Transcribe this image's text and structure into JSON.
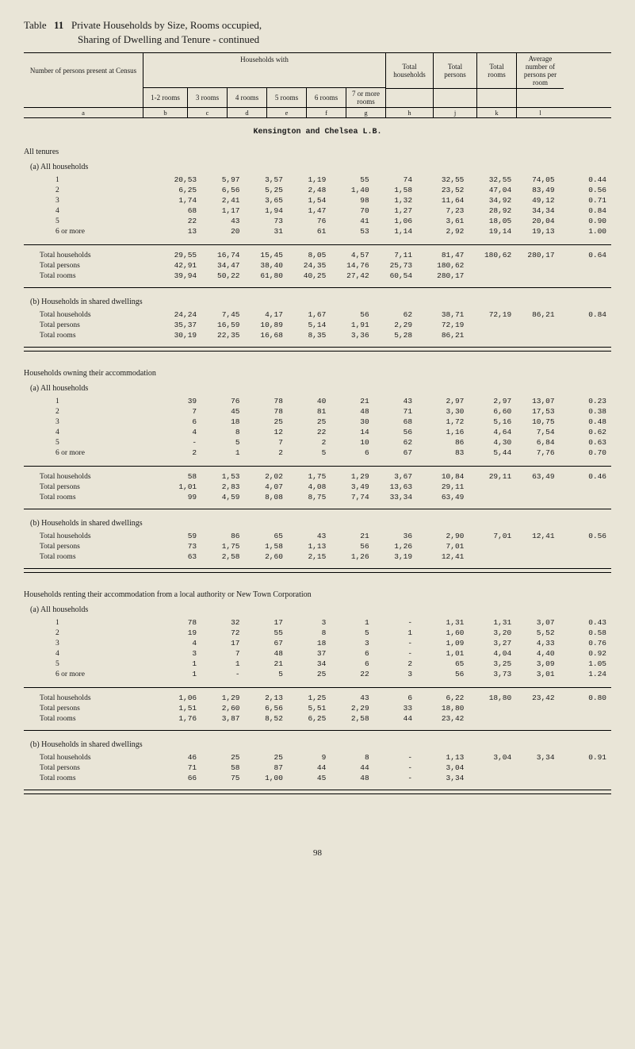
{
  "title_prefix": "Table",
  "title_number": "11",
  "title_text": "Private Households by Size, Rooms occupied,",
  "subtitle_text": "Sharing of Dwelling and Tenure - continued",
  "header": {
    "stub": "Number of persons present at Census",
    "households_with": "Households with",
    "cols_sub": [
      "1-2 rooms",
      "3 rooms",
      "4 rooms",
      "5 rooms",
      "6 rooms",
      "7 or more rooms"
    ],
    "total_households": "Total households",
    "total_persons": "Total persons",
    "total_rooms": "Total rooms",
    "avg": "Average number of persons per room",
    "letters": [
      "a",
      "b",
      "c",
      "d",
      "e",
      "f",
      "g",
      "h",
      "j",
      "k",
      "l"
    ]
  },
  "region": "Kensington and Chelsea L.B.",
  "sections": [
    {
      "heading": "All tenures",
      "subs": [
        {
          "sub_heading": "(a) All households",
          "rows": [
            {
              "label": "1",
              "cells": [
                "20,53",
                "5,97",
                "3,57",
                "1,19",
                "55",
                "74",
                "32,55",
                "32,55",
                "74,05",
                "0.44"
              ]
            },
            {
              "label": "2",
              "cells": [
                "6,25",
                "6,56",
                "5,25",
                "2,48",
                "1,40",
                "1,58",
                "23,52",
                "47,04",
                "83,49",
                "0.56"
              ]
            },
            {
              "label": "3",
              "cells": [
                "1,74",
                "2,41",
                "3,65",
                "1,54",
                "98",
                "1,32",
                "11,64",
                "34,92",
                "49,12",
                "0.71"
              ]
            },
            {
              "label": "4",
              "cells": [
                "68",
                "1,17",
                "1,94",
                "1,47",
                "70",
                "1,27",
                "7,23",
                "28,92",
                "34,34",
                "0.84"
              ]
            },
            {
              "label": "5",
              "cells": [
                "22",
                "43",
                "73",
                "76",
                "41",
                "1,06",
                "3,61",
                "18,05",
                "20,04",
                "0.90"
              ]
            },
            {
              "label": "6 or more",
              "cells": [
                "13",
                "20",
                "31",
                "61",
                "53",
                "1,14",
                "2,92",
                "19,14",
                "19,13",
                "1.00"
              ]
            }
          ],
          "totals": [
            {
              "label": "Total households",
              "cells": [
                "29,55",
                "16,74",
                "15,45",
                "8,05",
                "4,57",
                "7,11",
                "81,47",
                "180,62",
                "280,17",
                "0.64"
              ]
            },
            {
              "label": "Total persons",
              "cells": [
                "42,91",
                "34,47",
                "38,40",
                "24,35",
                "14,76",
                "25,73",
                "180,62",
                "",
                "",
                ""
              ]
            },
            {
              "label": "Total rooms",
              "cells": [
                "39,94",
                "50,22",
                "61,80",
                "40,25",
                "27,42",
                "60,54",
                "280,17",
                "",
                "",
                ""
              ]
            }
          ]
        },
        {
          "sub_heading": "(b) Households in shared dwellings",
          "rows": [],
          "totals": [
            {
              "label": "Total households",
              "cells": [
                "24,24",
                "7,45",
                "4,17",
                "1,67",
                "56",
                "62",
                "38,71",
                "72,19",
                "86,21",
                "0.84"
              ]
            },
            {
              "label": "Total persons",
              "cells": [
                "35,37",
                "16,59",
                "10,89",
                "5,14",
                "1,91",
                "2,29",
                "72,19",
                "",
                "",
                ""
              ]
            },
            {
              "label": "Total rooms",
              "cells": [
                "30,19",
                "22,35",
                "16,68",
                "8,35",
                "3,36",
                "5,28",
                "86,21",
                "",
                "",
                ""
              ]
            }
          ]
        }
      ]
    },
    {
      "heading": "Households owning their accommodation",
      "subs": [
        {
          "sub_heading": "(a) All households",
          "rows": [
            {
              "label": "1",
              "cells": [
                "39",
                "76",
                "78",
                "40",
                "21",
                "43",
                "2,97",
                "2,97",
                "13,07",
                "0.23"
              ]
            },
            {
              "label": "2",
              "cells": [
                "7",
                "45",
                "78",
                "81",
                "48",
                "71",
                "3,30",
                "6,60",
                "17,53",
                "0.38"
              ]
            },
            {
              "label": "3",
              "cells": [
                "6",
                "18",
                "25",
                "25",
                "30",
                "68",
                "1,72",
                "5,16",
                "10,75",
                "0.48"
              ]
            },
            {
              "label": "4",
              "cells": [
                "4",
                "8",
                "12",
                "22",
                "14",
                "56",
                "1,16",
                "4,64",
                "7,54",
                "0.62"
              ]
            },
            {
              "label": "5",
              "cells": [
                "-",
                "5",
                "7",
                "2",
                "10",
                "62",
                "86",
                "4,30",
                "6,84",
                "0.63"
              ]
            },
            {
              "label": "6 or more",
              "cells": [
                "2",
                "1",
                "2",
                "5",
                "6",
                "67",
                "83",
                "5,44",
                "7,76",
                "0.70"
              ]
            }
          ],
          "totals": [
            {
              "label": "Total households",
              "cells": [
                "58",
                "1,53",
                "2,02",
                "1,75",
                "1,29",
                "3,67",
                "10,84",
                "29,11",
                "63,49",
                "0.46"
              ]
            },
            {
              "label": "Total persons",
              "cells": [
                "1,01",
                "2,83",
                "4,07",
                "4,08",
                "3,49",
                "13,63",
                "29,11",
                "",
                "",
                ""
              ]
            },
            {
              "label": "Total rooms",
              "cells": [
                "99",
                "4,59",
                "8,08",
                "8,75",
                "7,74",
                "33,34",
                "63,49",
                "",
                "",
                ""
              ]
            }
          ]
        },
        {
          "sub_heading": "(b) Households in shared dwellings",
          "rows": [],
          "totals": [
            {
              "label": "Total households",
              "cells": [
                "59",
                "86",
                "65",
                "43",
                "21",
                "36",
                "2,90",
                "7,01",
                "12,41",
                "0.56"
              ]
            },
            {
              "label": "Total persons",
              "cells": [
                "73",
                "1,75",
                "1,58",
                "1,13",
                "56",
                "1,26",
                "7,01",
                "",
                "",
                ""
              ]
            },
            {
              "label": "Total rooms",
              "cells": [
                "63",
                "2,58",
                "2,60",
                "2,15",
                "1,26",
                "3,19",
                "12,41",
                "",
                "",
                ""
              ]
            }
          ]
        }
      ]
    },
    {
      "heading": "Households renting their accommodation from a local authority or New Town Corporation",
      "subs": [
        {
          "sub_heading": "(a) All households",
          "rows": [
            {
              "label": "1",
              "cells": [
                "78",
                "32",
                "17",
                "3",
                "1",
                "-",
                "1,31",
                "1,31",
                "3,07",
                "0.43"
              ]
            },
            {
              "label": "2",
              "cells": [
                "19",
                "72",
                "55",
                "8",
                "5",
                "1",
                "1,60",
                "3,20",
                "5,52",
                "0.58"
              ]
            },
            {
              "label": "3",
              "cells": [
                "4",
                "17",
                "67",
                "18",
                "3",
                "-",
                "1,09",
                "3,27",
                "4,33",
                "0.76"
              ]
            },
            {
              "label": "4",
              "cells": [
                "3",
                "7",
                "48",
                "37",
                "6",
                "-",
                "1,01",
                "4,04",
                "4,40",
                "0.92"
              ]
            },
            {
              "label": "5",
              "cells": [
                "1",
                "1",
                "21",
                "34",
                "6",
                "2",
                "65",
                "3,25",
                "3,09",
                "1.05"
              ]
            },
            {
              "label": "6 or more",
              "cells": [
                "1",
                "-",
                "5",
                "25",
                "22",
                "3",
                "56",
                "3,73",
                "3,01",
                "1.24"
              ]
            }
          ],
          "totals": [
            {
              "label": "Total households",
              "cells": [
                "1,06",
                "1,29",
                "2,13",
                "1,25",
                "43",
                "6",
                "6,22",
                "18,80",
                "23,42",
                "0.80"
              ]
            },
            {
              "label": "Total persons",
              "cells": [
                "1,51",
                "2,60",
                "6,56",
                "5,51",
                "2,29",
                "33",
                "18,80",
                "",
                "",
                ""
              ]
            },
            {
              "label": "Total rooms",
              "cells": [
                "1,76",
                "3,87",
                "8,52",
                "6,25",
                "2,58",
                "44",
                "23,42",
                "",
                "",
                ""
              ]
            }
          ]
        },
        {
          "sub_heading": "(b) Households in shared dwellings",
          "rows": [],
          "totals": [
            {
              "label": "Total households",
              "cells": [
                "46",
                "25",
                "25",
                "9",
                "8",
                "-",
                "1,13",
                "3,04",
                "3,34",
                "0.91"
              ]
            },
            {
              "label": "Total persons",
              "cells": [
                "71",
                "58",
                "87",
                "44",
                "44",
                "-",
                "3,04",
                "",
                "",
                ""
              ]
            },
            {
              "label": "Total rooms",
              "cells": [
                "66",
                "75",
                "1,00",
                "45",
                "48",
                "-",
                "3,34",
                "",
                "",
                ""
              ]
            }
          ]
        }
      ]
    }
  ],
  "page_number": "98"
}
